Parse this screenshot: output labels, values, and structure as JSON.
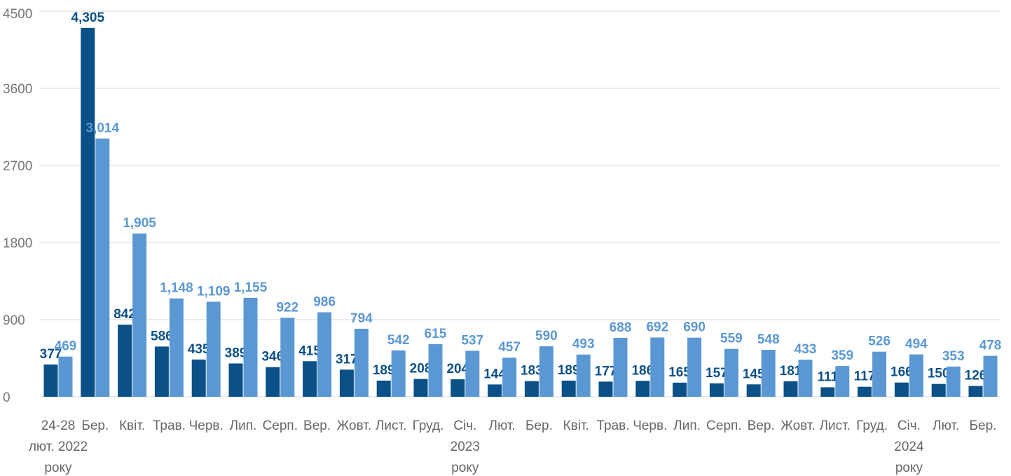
{
  "chart_data": {
    "type": "bar",
    "categories": [
      [
        "24-28",
        "лют. 2022",
        "року"
      ],
      [
        "Бер."
      ],
      [
        "Квіт."
      ],
      [
        "Трав."
      ],
      [
        "Черв."
      ],
      [
        "Лип."
      ],
      [
        "Серп."
      ],
      [
        "Вер."
      ],
      [
        "Жовт."
      ],
      [
        "Лист."
      ],
      [
        "Груд."
      ],
      [
        "Січ.",
        "2023",
        "року"
      ],
      [
        "Лют."
      ],
      [
        "Бер."
      ],
      [
        "Квіт."
      ],
      [
        "Трав."
      ],
      [
        "Черв."
      ],
      [
        "Лип."
      ],
      [
        "Серп."
      ],
      [
        "Вер."
      ],
      [
        "Жовт."
      ],
      [
        "Лист."
      ],
      [
        "Груд."
      ],
      [
        "Січ.",
        "2024",
        "року"
      ],
      [
        "Лют."
      ],
      [
        "Бер."
      ]
    ],
    "series": [
      {
        "color": "#0b5087",
        "values": [
          377,
          4305,
          842,
          586,
          435,
          389,
          346,
          415,
          317,
          189,
          208,
          204,
          144,
          183,
          189,
          177,
          186,
          165,
          157,
          145,
          181,
          111,
          117,
          166,
          150,
          126
        ],
        "labels": [
          "377",
          "4,305",
          "842",
          "586",
          "435",
          "389",
          "346",
          "415",
          "317",
          "189",
          "208",
          "204",
          "144",
          "183",
          "189",
          "177",
          "186",
          "165",
          "157",
          "145",
          "181",
          "111",
          "117",
          "166",
          "150",
          "126"
        ]
      },
      {
        "color": "#5b98d3",
        "values": [
          469,
          3014,
          1905,
          1148,
          1109,
          1155,
          922,
          986,
          794,
          542,
          615,
          537,
          457,
          590,
          493,
          688,
          692,
          690,
          559,
          548,
          433,
          359,
          526,
          494,
          353,
          478
        ],
        "labels": [
          "469",
          "3,014",
          "1,905",
          "1,148",
          "1,109",
          "1,155",
          "922",
          "986",
          "794",
          "542",
          "615",
          "537",
          "457",
          "590",
          "493",
          "688",
          "692",
          "690",
          "559",
          "548",
          "433",
          "359",
          "526",
          "494",
          "353",
          "478"
        ]
      }
    ],
    "yticks": [
      "0",
      "900",
      "1800",
      "2700",
      "3600",
      "4500"
    ],
    "ylim": [
      0,
      4500
    ],
    "grid": true,
    "title": "",
    "xlabel": "",
    "ylabel": ""
  }
}
